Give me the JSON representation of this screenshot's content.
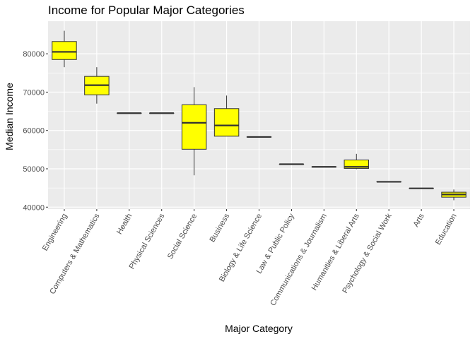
{
  "chart_data": {
    "type": "boxplot",
    "title": "Income for Popular Major Categories",
    "xlabel": "Major Category",
    "ylabel": "Median Income",
    "ylim": [
      39500,
      88500
    ],
    "yticks": [
      40000,
      50000,
      60000,
      70000,
      80000
    ],
    "ytick_labels": [
      "40000",
      "50000",
      "60000",
      "70000",
      "80000"
    ],
    "grid": true,
    "colors": {
      "panel": "#ebebeb",
      "grid": "#ffffff",
      "box_fill": "#ffff00",
      "box_line": "#333333"
    },
    "categories": [
      "Engineering",
      "Computers & Mathematics",
      "Health",
      "Physical Sciences",
      "Social Science",
      "Business",
      "Biology & Life Science",
      "Law & Public Policy",
      "Communications & Journalism",
      "Humanities & Liberal Arts",
      "Psychology & Social Work",
      "Arts",
      "Education"
    ],
    "boxes": [
      {
        "min": 76500,
        "q1": 78500,
        "median": 80500,
        "q3": 83200,
        "max": 86000
      },
      {
        "min": 67000,
        "q1": 69300,
        "median": 71800,
        "q3": 74100,
        "max": 76500
      },
      {
        "min": 64500,
        "q1": 64500,
        "median": 64500,
        "q3": 64500,
        "max": 64500
      },
      {
        "min": 64500,
        "q1": 64500,
        "median": 64500,
        "q3": 64500,
        "max": 64500
      },
      {
        "min": 48300,
        "q1": 55100,
        "median": 62000,
        "q3": 66700,
        "max": 71300
      },
      {
        "min": 58500,
        "q1": 58500,
        "median": 61300,
        "q3": 65700,
        "max": 69100
      },
      {
        "min": 58300,
        "q1": 58300,
        "median": 58300,
        "q3": 58300,
        "max": 58300
      },
      {
        "min": 51200,
        "q1": 51200,
        "median": 51200,
        "q3": 51200,
        "max": 51200
      },
      {
        "min": 50500,
        "q1": 50500,
        "median": 50500,
        "q3": 50500,
        "max": 50500
      },
      {
        "min": 49900,
        "q1": 50100,
        "median": 50500,
        "q3": 52300,
        "max": 53900
      },
      {
        "min": 46600,
        "q1": 46600,
        "median": 46600,
        "q3": 46600,
        "max": 46600
      },
      {
        "min": 44900,
        "q1": 44900,
        "median": 44900,
        "q3": 44900,
        "max": 44900
      },
      {
        "min": 41800,
        "q1": 42600,
        "median": 43300,
        "q3": 43900,
        "max": 44600
      }
    ]
  }
}
